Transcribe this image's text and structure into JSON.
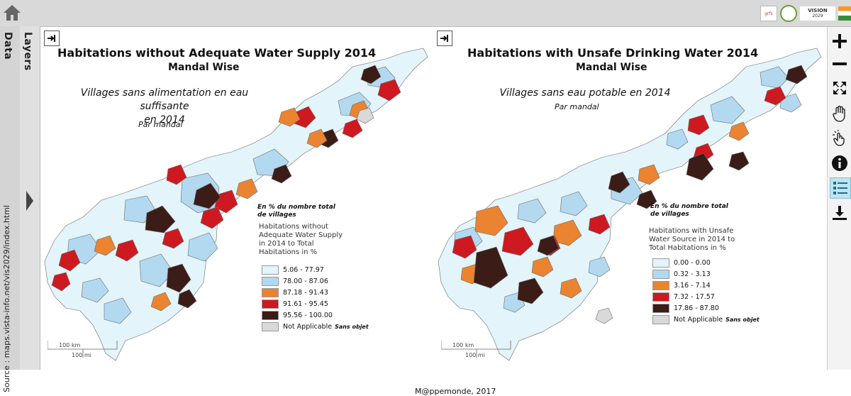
{
  "sidebar": {
    "data_tab": "Data",
    "layers_tab": "Layers",
    "source_text": "Source : maps.vista-info.net/vis2029/index.html"
  },
  "header": {
    "logos": {
      "left_logo_text": "grfs",
      "vision_title": "VISION",
      "vision_year": "2029"
    }
  },
  "map_left": {
    "title": "Habitations without Adequate Water Supply 2014",
    "subtitle": "Mandal Wise",
    "fr_title_line1": "Villages sans alimentation en eau suffisante",
    "fr_title_line2": "en 2014",
    "fr_subtitle": "Par mandal",
    "legend_fr_line1": "En % du nombre total",
    "legend_fr_line2": "de villages",
    "legend_title_lines": [
      "Habitations without",
      "Adequate Water Supply",
      "in 2014 to Total",
      "Habitations in %"
    ],
    "legend": [
      {
        "label": "5.06 - 77.97",
        "color": "#e3f4fa"
      },
      {
        "label": "78.00 - 87.06",
        "color": "#b2d9ef"
      },
      {
        "label": "87.18 - 91.43",
        "color": "#ea8431"
      },
      {
        "label": "91.61 - 95.45",
        "color": "#cf1920"
      },
      {
        "label": "95.56 - 100.00",
        "color": "#3b1c17"
      }
    ],
    "na_label": "Not Applicable",
    "na_fr": "Sans objet",
    "na_color": "#d9d9d9",
    "scale_km": "100 km",
    "scale_mi": "100 mi"
  },
  "map_right": {
    "title": "Habitations with Unsafe Drinking Water 2014",
    "subtitle": "Mandal Wise",
    "fr_title": "Villages sans eau potable en 2014",
    "fr_subtitle": "Par mandal",
    "legend_fr_line1": "En % du nombre total",
    "legend_fr_line2": "de villages",
    "legend_title_lines": [
      "Habitations with Unsafe",
      "Water Source in 2014 to",
      "Total Habitations in %"
    ],
    "legend": [
      {
        "label": "0.00 - 0.00",
        "color": "#e3f4fa"
      },
      {
        "label": "0.32 - 3.13",
        "color": "#b2d9ef"
      },
      {
        "label": "3.16 - 7.14",
        "color": "#ea8431"
      },
      {
        "label": "7.32 - 17.57",
        "color": "#cf1920"
      },
      {
        "label": "17.86 - 87.80",
        "color": "#3b1c17"
      }
    ],
    "na_label": "Not Applicable",
    "na_fr": "Sans objet",
    "na_color": "#d9d9d9",
    "scale_km": "100 km",
    "scale_mi": "100 mi"
  },
  "credit": "M@ppemonde, 2017",
  "tools": [
    "zoom-in",
    "zoom-out",
    "full-extent",
    "pan",
    "identify",
    "info",
    "legend",
    "download"
  ]
}
